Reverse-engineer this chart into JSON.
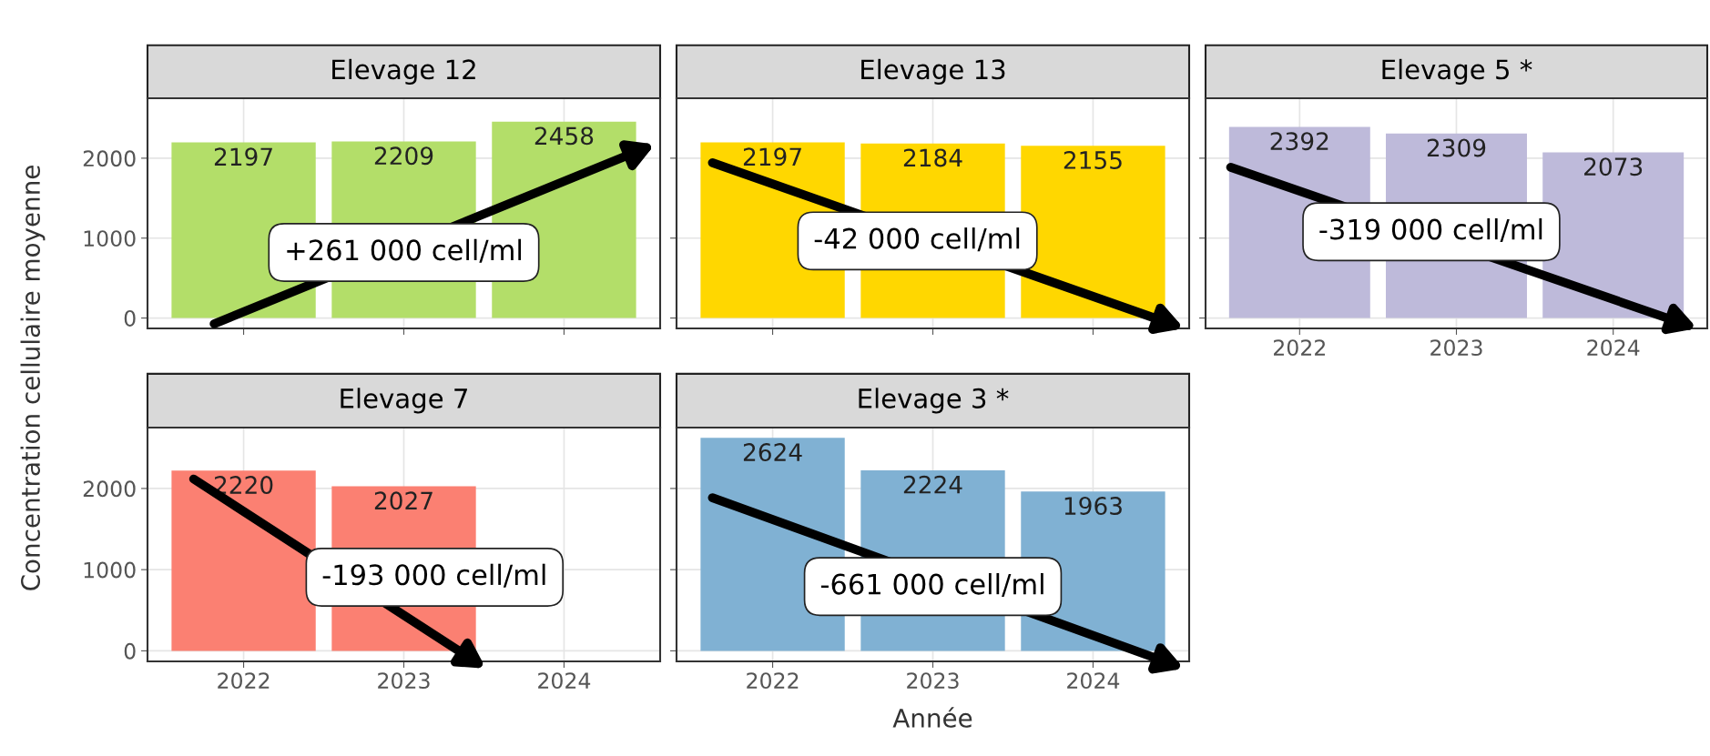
{
  "chart_data": [
    {
      "type": "bar",
      "title": "Elevage 12",
      "categories": [
        "2022",
        "2023",
        "2024"
      ],
      "values": [
        2197,
        2209,
        2458
      ],
      "color": "#b3de69",
      "ylim": [
        -130,
        2750
      ],
      "yticks": [
        0,
        1000,
        2000
      ],
      "grid": true,
      "data_labels": true,
      "tick_labels": "y",
      "ylabel": "Concentration cellulaire moyenne",
      "annotations": [
        "+261 000 cell/ml"
      ]
    },
    {
      "type": "bar",
      "title": "Elevage 13",
      "categories": [
        "2022",
        "2023",
        "2024"
      ],
      "values": [
        2197,
        2184,
        2155
      ],
      "color": "#ffd700",
      "ylim": [
        -130,
        2750
      ],
      "yticks": [
        0,
        1000,
        2000
      ],
      "grid": true,
      "data_labels": true,
      "tick_labels": false,
      "annotations": [
        "-42 000 cell/ml"
      ]
    },
    {
      "type": "bar",
      "title": "Elevage 5 *",
      "categories": [
        "2022",
        "2023",
        "2024"
      ],
      "values": [
        2392,
        2309,
        2073
      ],
      "color": "#bebada",
      "ylim": [
        -130,
        2750
      ],
      "yticks": [
        0,
        1000,
        2000
      ],
      "grid": true,
      "data_labels": true,
      "tick_labels": "x",
      "annotations": [
        "-319 000 cell/ml"
      ]
    },
    {
      "type": "bar",
      "title": "Elevage 7",
      "categories": [
        "2022",
        "2023",
        "2024"
      ],
      "values": [
        2220,
        2027,
        null
      ],
      "color": "#fb8072",
      "ylim": [
        -130,
        2750
      ],
      "yticks": [
        0,
        1000,
        2000
      ],
      "grid": true,
      "data_labels": true,
      "annotations": [
        "-193 000 cell/ml"
      ]
    },
    {
      "type": "bar",
      "title": "Elevage 3 *",
      "categories": [
        "2022",
        "2023",
        "2024"
      ],
      "values": [
        2624,
        2224,
        1963
      ],
      "color": "#80b1d3",
      "ylim": [
        -130,
        2750
      ],
      "yticks": [
        0,
        1000,
        2000
      ],
      "grid": true,
      "data_labels": true,
      "tick_labels": "x",
      "xlabel": "Année",
      "annotations": [
        "-661 000 cell/ml"
      ]
    }
  ]
}
